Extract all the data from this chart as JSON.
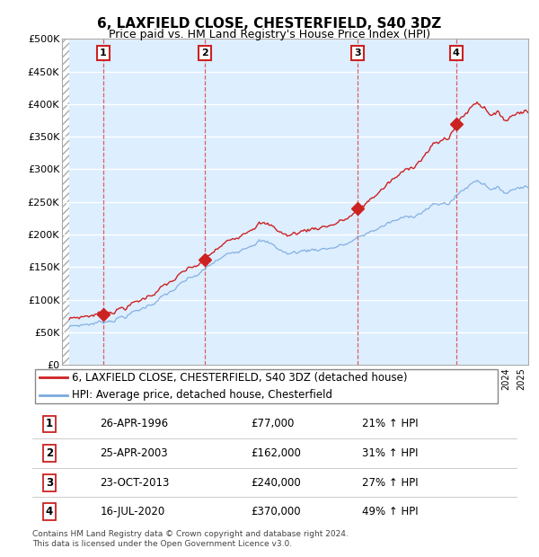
{
  "title": "6, LAXFIELD CLOSE, CHESTERFIELD, S40 3DZ",
  "subtitle": "Price paid vs. HM Land Registry's House Price Index (HPI)",
  "xlim": [
    1993.5,
    2025.5
  ],
  "ylim": [
    0,
    500000
  ],
  "yticks": [
    0,
    50000,
    100000,
    150000,
    200000,
    250000,
    300000,
    350000,
    400000,
    450000,
    500000
  ],
  "sales": [
    {
      "date": 1996.32,
      "price": 77000,
      "label": "1"
    },
    {
      "date": 2003.32,
      "price": 162000,
      "label": "2"
    },
    {
      "date": 2013.81,
      "price": 240000,
      "label": "3"
    },
    {
      "date": 2020.54,
      "price": 370000,
      "label": "4"
    }
  ],
  "legend_entries": [
    "6, LAXFIELD CLOSE, CHESTERFIELD, S40 3DZ (detached house)",
    "HPI: Average price, detached house, Chesterfield"
  ],
  "table_rows": [
    [
      "1",
      "26-APR-1996",
      "£77,000",
      "21% ↑ HPI"
    ],
    [
      "2",
      "25-APR-2003",
      "£162,000",
      "31% ↑ HPI"
    ],
    [
      "3",
      "23-OCT-2013",
      "£240,000",
      "27% ↑ HPI"
    ],
    [
      "4",
      "16-JUL-2020",
      "£370,000",
      "49% ↑ HPI"
    ]
  ],
  "footnote": "Contains HM Land Registry data © Crown copyright and database right 2024.\nThis data is licensed under the Open Government Licence v3.0.",
  "hpi_color": "#7aaadd",
  "sale_color": "#cc2222",
  "vline_color": "#dd4444",
  "box_color": "#cc2222",
  "chart_bg": "#ddeeff",
  "hatch_bg": "#e8e8e8"
}
